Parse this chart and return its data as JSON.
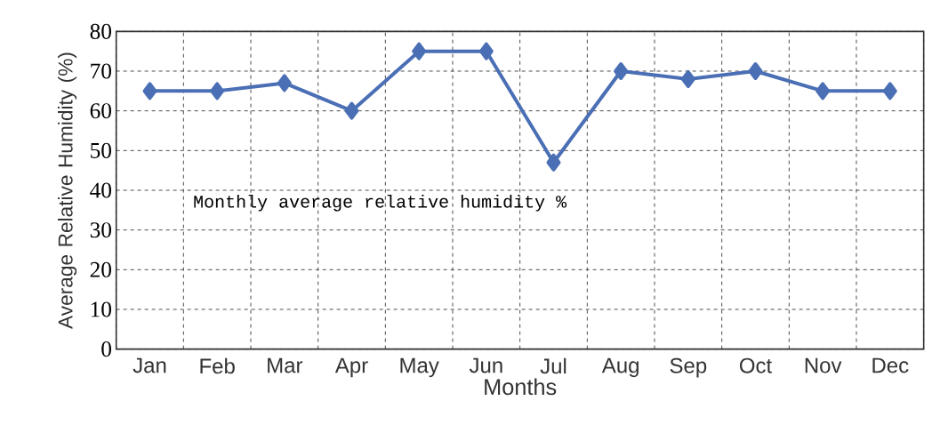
{
  "chart_data": {
    "type": "line",
    "xlabel": "Months",
    "ylabel": "Average Relative Humidity (%)",
    "categories": [
      "Jan",
      "Feb",
      "Mar",
      "Apr",
      "May",
      "Jun",
      "Jul",
      "Aug",
      "Sep",
      "Oct",
      "Nov",
      "Dec"
    ],
    "values": [
      65,
      65,
      67,
      60,
      75,
      75,
      47,
      70,
      68,
      70,
      65,
      65
    ],
    "color": "#4a6fb5",
    "marker": "diamond",
    "line_style": "solid",
    "grid": true,
    "ylim": [
      0,
      80
    ],
    "yticks": [
      0,
      10,
      20,
      30,
      40,
      50,
      60,
      70,
      80
    ],
    "annotations": [
      "Monthly average relative humidity %"
    ]
  }
}
